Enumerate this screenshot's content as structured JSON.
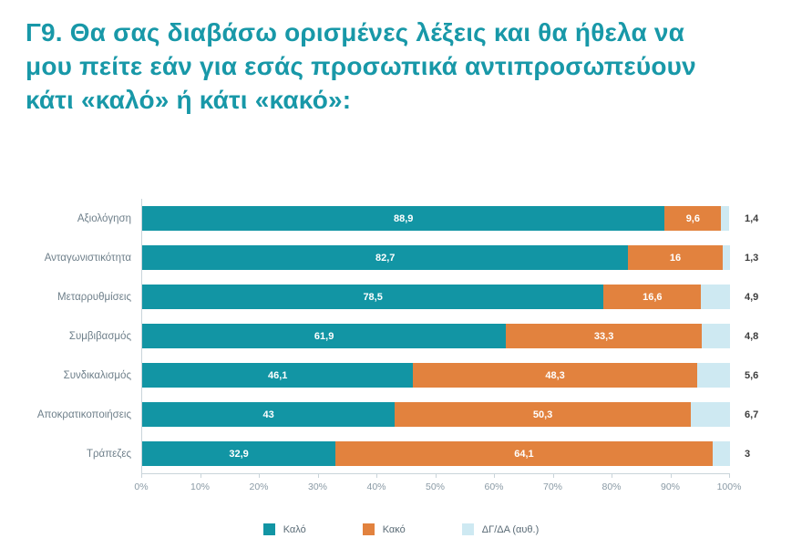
{
  "title": "Γ9. Θα σας διαβάσω ορισμένες λέξεις και θα ήθελα να μου πείτε εάν για εσάς προσωπικά αντιπροσωπεύουν κάτι «καλό» ή κάτι «κακό»:",
  "title_color": "#1898A8",
  "chart_data": {
    "type": "bar",
    "orientation": "horizontal",
    "stacked": true,
    "categories": [
      "Αξιολόγηση",
      "Ανταγωνιστικότητα",
      "Μεταρρυθμίσεις",
      "Συμβιβασμός",
      "Συνδικαλισμός",
      "Αποκρατικοποιήσεις",
      "Τράπεζες"
    ],
    "series": [
      {
        "name": "Καλό",
        "color": "#1295A4",
        "values": [
          88.9,
          82.7,
          78.5,
          61.9,
          46.1,
          43,
          32.9
        ],
        "labels": [
          "88,9",
          "82,7",
          "78,5",
          "61,9",
          "46,1",
          "43",
          "32,9"
        ]
      },
      {
        "name": "Κακό",
        "color": "#E2823E",
        "values": [
          9.6,
          16,
          16.6,
          33.3,
          48.3,
          50.3,
          64.1
        ],
        "labels": [
          "9,6",
          "16",
          "16,6",
          "33,3",
          "48,3",
          "50,3",
          "64,1"
        ]
      },
      {
        "name": "ΔΓ/ΔΑ (αυθ.)",
        "color": "#CEE9F2",
        "values": [
          1.4,
          1.3,
          4.9,
          4.8,
          5.6,
          6.7,
          3
        ],
        "labels": [
          "1,4",
          "1,3",
          "4,9",
          "4,8",
          "5,6",
          "6,7",
          "3"
        ]
      }
    ],
    "x_ticks": [
      "0%",
      "10%",
      "20%",
      "30%",
      "40%",
      "50%",
      "60%",
      "70%",
      "80%",
      "90%",
      "100%"
    ],
    "xlim": [
      0,
      100
    ],
    "grid": false,
    "legend_position": "bottom"
  }
}
